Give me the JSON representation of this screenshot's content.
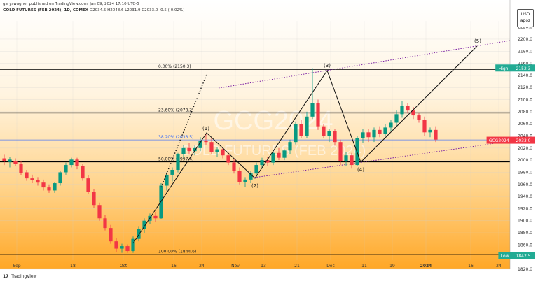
{
  "header": {
    "published_line": "garyswagner published on TradingView.com, Jan 09, 2024 17:10 UTC-5",
    "symbol_line": "GOLD FUTURES (FEB 2024), 1D, COMEX",
    "ohlc_line": "O2034.5  H2048.6  L2031.9  C2033.0  -0.5 (-0.02%)"
  },
  "unit_box": {
    "currency": "USD",
    "unit": "apoz"
  },
  "footer": {
    "brand": "TradingView",
    "icon": "tradingview-logo-icon"
  },
  "watermark": {
    "symbol": "GCG2024",
    "name": "GOLD FUTURES (FEB 2024)"
  },
  "colors": {
    "up": "#089981",
    "down": "#f23645",
    "accent_teal": "#22ab94",
    "accent_blue": "#2962ff",
    "fib_line": "#000000",
    "trend_dotted": "#7b1fa2",
    "bg_top": "#ffffff",
    "bg_bottom": "#ffa726"
  },
  "chart_data": {
    "type": "candlestick",
    "title": "GOLD FUTURES (FEB 2024), 1D, COMEX",
    "ylim": [
      1820,
      2230
    ],
    "y_ticks": [
      1820,
      1840,
      1860,
      1880,
      1900,
      1920,
      1940,
      1960,
      1980,
      2000,
      2020,
      2040,
      2060,
      2080,
      2100,
      2120,
      2140,
      2160,
      2180,
      2200,
      2220
    ],
    "x_tick_labels": [
      "Sep",
      "18",
      "Oct",
      "16",
      "24",
      "Nov",
      "13",
      "21",
      "Dec",
      "11",
      "19",
      "2024",
      "16",
      "24"
    ],
    "fib_levels": [
      {
        "label": "0.00% (2150.3)",
        "value": 2150.3
      },
      {
        "label": "23.60% (2078.2)",
        "value": 2078.2
      },
      {
        "label": "38.20% (2033.5)",
        "value": 2033.5
      },
      {
        "label": "50.00% (1997.4)",
        "value": 1997.4
      },
      {
        "label": "100.00% (1844.6)",
        "value": 1844.6
      }
    ],
    "price_tags": [
      {
        "label": "High",
        "value": "2152.3"
      },
      {
        "label": "GCG2024",
        "value": "2033.0"
      },
      {
        "label": "Low",
        "value": "1842.5"
      }
    ],
    "wave_labels": [
      "(1)",
      "(2)",
      "(3)",
      "(4)",
      "(5)"
    ],
    "candles": [
      {
        "o": 2003,
        "h": 2009,
        "l": 1992,
        "c": 1998
      },
      {
        "o": 1997,
        "h": 2005,
        "l": 1988,
        "c": 2001
      },
      {
        "o": 1999,
        "h": 2003,
        "l": 1990,
        "c": 1994
      },
      {
        "o": 1994,
        "h": 1998,
        "l": 1975,
        "c": 1979
      },
      {
        "o": 1980,
        "h": 1984,
        "l": 1966,
        "c": 1970
      },
      {
        "o": 1970,
        "h": 1976,
        "l": 1962,
        "c": 1967
      },
      {
        "o": 1967,
        "h": 1972,
        "l": 1958,
        "c": 1963
      },
      {
        "o": 1963,
        "h": 1968,
        "l": 1950,
        "c": 1955
      },
      {
        "o": 1955,
        "h": 1960,
        "l": 1946,
        "c": 1950
      },
      {
        "o": 1950,
        "h": 1964,
        "l": 1946,
        "c": 1962
      },
      {
        "o": 1962,
        "h": 1982,
        "l": 1958,
        "c": 1980
      },
      {
        "o": 1980,
        "h": 1996,
        "l": 1976,
        "c": 1992
      },
      {
        "o": 1992,
        "h": 2004,
        "l": 1988,
        "c": 2001
      },
      {
        "o": 2001,
        "h": 2004,
        "l": 1985,
        "c": 1990
      },
      {
        "o": 1990,
        "h": 1994,
        "l": 1966,
        "c": 1970
      },
      {
        "o": 1970,
        "h": 1975,
        "l": 1944,
        "c": 1948
      },
      {
        "o": 1948,
        "h": 1952,
        "l": 1921,
        "c": 1926
      },
      {
        "o": 1926,
        "h": 1930,
        "l": 1900,
        "c": 1904
      },
      {
        "o": 1904,
        "h": 1909,
        "l": 1884,
        "c": 1888
      },
      {
        "o": 1888,
        "h": 1893,
        "l": 1862,
        "c": 1866
      },
      {
        "o": 1866,
        "h": 1871,
        "l": 1848,
        "c": 1854
      },
      {
        "o": 1854,
        "h": 1862,
        "l": 1847,
        "c": 1858
      },
      {
        "o": 1858,
        "h": 1861,
        "l": 1847,
        "c": 1850
      },
      {
        "o": 1850,
        "h": 1874,
        "l": 1847,
        "c": 1870
      },
      {
        "o": 1870,
        "h": 1890,
        "l": 1866,
        "c": 1886
      },
      {
        "o": 1886,
        "h": 1904,
        "l": 1880,
        "c": 1900
      },
      {
        "o": 1900,
        "h": 1912,
        "l": 1894,
        "c": 1908
      },
      {
        "o": 1908,
        "h": 1914,
        "l": 1898,
        "c": 1904
      },
      {
        "o": 1904,
        "h": 1962,
        "l": 1902,
        "c": 1958
      },
      {
        "o": 1958,
        "h": 1980,
        "l": 1950,
        "c": 1976
      },
      {
        "o": 1976,
        "h": 1988,
        "l": 1965,
        "c": 1984
      },
      {
        "o": 1984,
        "h": 2012,
        "l": 1980,
        "c": 2010
      },
      {
        "o": 2010,
        "h": 2025,
        "l": 2004,
        "c": 2020
      },
      {
        "o": 2020,
        "h": 2028,
        "l": 2010,
        "c": 2015
      },
      {
        "o": 2015,
        "h": 2024,
        "l": 2008,
        "c": 2020
      },
      {
        "o": 2020,
        "h": 2038,
        "l": 2015,
        "c": 2032
      },
      {
        "o": 2032,
        "h": 2044,
        "l": 2025,
        "c": 2030
      },
      {
        "o": 2030,
        "h": 2038,
        "l": 2010,
        "c": 2014
      },
      {
        "o": 2014,
        "h": 2022,
        "l": 2005,
        "c": 2018
      },
      {
        "o": 2018,
        "h": 2022,
        "l": 2003,
        "c": 2008
      },
      {
        "o": 2008,
        "h": 2012,
        "l": 1992,
        "c": 1996
      },
      {
        "o": 1996,
        "h": 2002,
        "l": 1978,
        "c": 1982
      },
      {
        "o": 1982,
        "h": 1988,
        "l": 1960,
        "c": 1964
      },
      {
        "o": 1964,
        "h": 1972,
        "l": 1956,
        "c": 1968
      },
      {
        "o": 1968,
        "h": 1982,
        "l": 1962,
        "c": 1978
      },
      {
        "o": 1978,
        "h": 1996,
        "l": 1972,
        "c": 1992
      },
      {
        "o": 1992,
        "h": 2004,
        "l": 1986,
        "c": 2000
      },
      {
        "o": 2000,
        "h": 2006,
        "l": 1990,
        "c": 1996
      },
      {
        "o": 1996,
        "h": 2015,
        "l": 1992,
        "c": 2012
      },
      {
        "o": 2012,
        "h": 2020,
        "l": 2000,
        "c": 2004
      },
      {
        "o": 2004,
        "h": 2018,
        "l": 2000,
        "c": 2016
      },
      {
        "o": 2016,
        "h": 2034,
        "l": 2010,
        "c": 2030
      },
      {
        "o": 2030,
        "h": 2064,
        "l": 2026,
        "c": 2060
      },
      {
        "o": 2060,
        "h": 2066,
        "l": 2036,
        "c": 2040
      },
      {
        "o": 2040,
        "h": 2080,
        "l": 2036,
        "c": 2072
      },
      {
        "o": 2072,
        "h": 2152,
        "l": 2068,
        "c": 2094
      },
      {
        "o": 2094,
        "h": 2100,
        "l": 2050,
        "c": 2056
      },
      {
        "o": 2056,
        "h": 2060,
        "l": 2036,
        "c": 2040
      },
      {
        "o": 2040,
        "h": 2052,
        "l": 2030,
        "c": 2048
      },
      {
        "o": 2048,
        "h": 2052,
        "l": 2024,
        "c": 2030
      },
      {
        "o": 2030,
        "h": 2034,
        "l": 1992,
        "c": 1998
      },
      {
        "o": 1998,
        "h": 2014,
        "l": 1990,
        "c": 2008
      },
      {
        "o": 2008,
        "h": 2012,
        "l": 1986,
        "c": 1992
      },
      {
        "o": 1992,
        "h": 2040,
        "l": 1990,
        "c": 2036
      },
      {
        "o": 2036,
        "h": 2052,
        "l": 2028,
        "c": 2046
      },
      {
        "o": 2046,
        "h": 2052,
        "l": 2030,
        "c": 2038
      },
      {
        "o": 2038,
        "h": 2054,
        "l": 2030,
        "c": 2050
      },
      {
        "o": 2050,
        "h": 2056,
        "l": 2038,
        "c": 2044
      },
      {
        "o": 2044,
        "h": 2060,
        "l": 2040,
        "c": 2054
      },
      {
        "o": 2054,
        "h": 2066,
        "l": 2048,
        "c": 2062
      },
      {
        "o": 2062,
        "h": 2082,
        "l": 2056,
        "c": 2076
      },
      {
        "o": 2076,
        "h": 2098,
        "l": 2070,
        "c": 2090
      },
      {
        "o": 2090,
        "h": 2094,
        "l": 2078,
        "c": 2082
      },
      {
        "o": 2082,
        "h": 2088,
        "l": 2068,
        "c": 2074
      },
      {
        "o": 2074,
        "h": 2078,
        "l": 2062,
        "c": 2066
      },
      {
        "o": 2066,
        "h": 2072,
        "l": 2040,
        "c": 2046
      },
      {
        "o": 2046,
        "h": 2054,
        "l": 2038,
        "c": 2050
      },
      {
        "o": 2050,
        "h": 2056,
        "l": 2030,
        "c": 2034
      }
    ]
  }
}
